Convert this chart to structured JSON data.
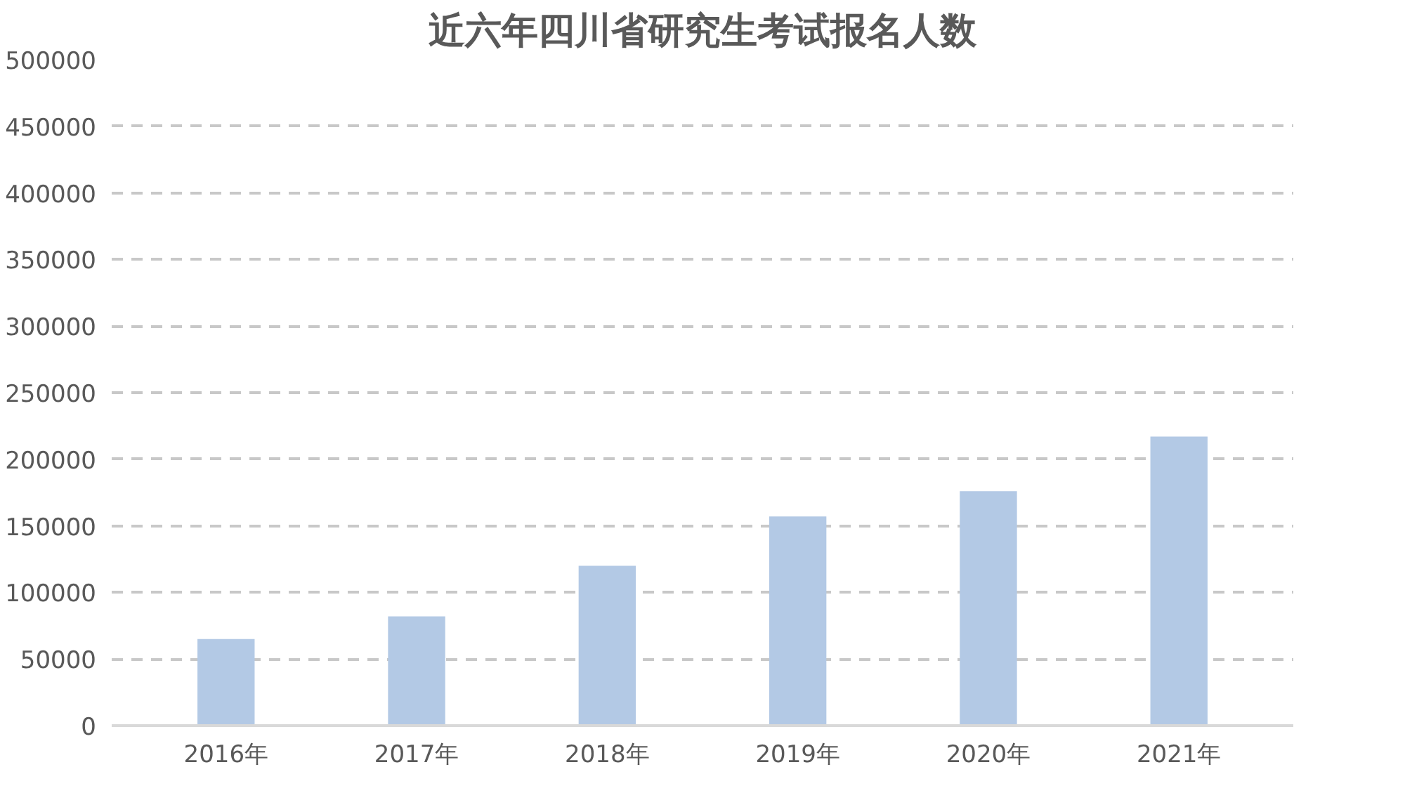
{
  "chart_data": {
    "type": "bar",
    "title": "近六年四川省研究生考试报名人数",
    "categories": [
      "2016年",
      "2017年",
      "2018年",
      "2019年",
      "2020年",
      "2021年"
    ],
    "values": [
      65000,
      82000,
      120000,
      157000,
      176000,
      217000
    ],
    "color": "#b3c9e5",
    "ylim": [
      0,
      500000
    ],
    "yticks": [
      0,
      50000,
      100000,
      150000,
      200000,
      250000,
      300000,
      350000,
      400000,
      450000,
      500000
    ],
    "grid": "y"
  }
}
